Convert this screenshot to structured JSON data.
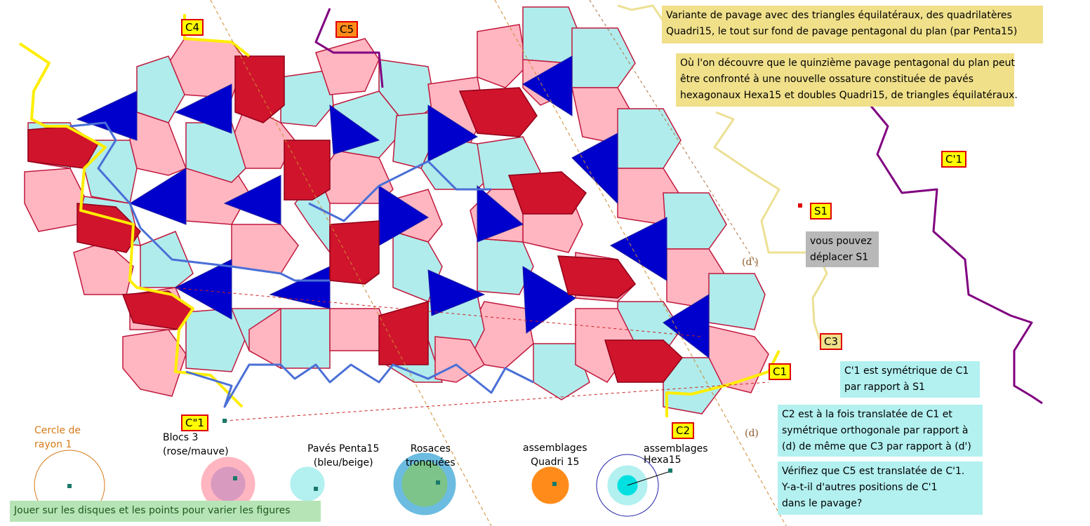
{
  "notes": {
    "variant": [
      "Variante de pavage avec des triangles équilatéraux, des quadrilatères",
      "Quadri15, le tout sur fond de pavage pentagonal du plan (par Penta15)"
    ],
    "discovery": [
      "Où l'on découvre que le quinzième pavage pentagonal du plan peut",
      "être confronté à une nouvelle ossature constituée de pavés",
      "hexagonaux Hexa15 et doubles Quadri15, de triangles équilatéraux."
    ],
    "move_s1": [
      "vous pouvez",
      "déplacer S1"
    ],
    "c1_sym": [
      "C'1 est symétrique de C1",
      "par rapport à S1"
    ],
    "c2_info": [
      "C2 est à la fois translatée de C1 et",
      "symétrique orthogonale par rapport à",
      " (d) de même que C3 par rapport à (d')"
    ],
    "verify": [
      "Vérifiez que C5 est translatée de C'1.",
      "Y-a-t-il d'autres positions de  C'1",
      "dans le pavage?"
    ],
    "play": "Jouer sur les  disques et les points pour varier les figures"
  },
  "tags": {
    "c4": "C4",
    "c5": "C5",
    "c_prime_1": "C'1",
    "s1": "S1",
    "c3": "C3",
    "c1": "C1",
    "c2": "C2",
    "c_second_1": "C\"1"
  },
  "line_labels": {
    "d_prime": "(d')",
    "d": "(d)"
  },
  "controls": {
    "cercle": [
      "Cercle de",
      "rayon 1"
    ],
    "blocs": [
      "Blocs 3",
      "(rose/mauve)"
    ],
    "paves": [
      "Pavés Penta15",
      "(bleu/beige)"
    ],
    "rosaces": [
      "Rosaces",
      "tronquées"
    ],
    "quadri": [
      "assemblages",
      "Quadri 15"
    ],
    "hexa": [
      "assemblages",
      "Hexa15"
    ]
  },
  "colors": {
    "pink": "#ffb6c1",
    "cyan": "#b0ecec",
    "blue": "#0000cc",
    "red": "#d0142c",
    "yellow": "#ffee00",
    "purple": "#800080",
    "steel_blue": "#4a6fd6",
    "pale_yellow": "#ece094",
    "orange": "#ff8c1a"
  },
  "icons": [
    "triangle-tile",
    "pentagon-tile",
    "hexagon-tile",
    "control-disc",
    "drag-point"
  ]
}
